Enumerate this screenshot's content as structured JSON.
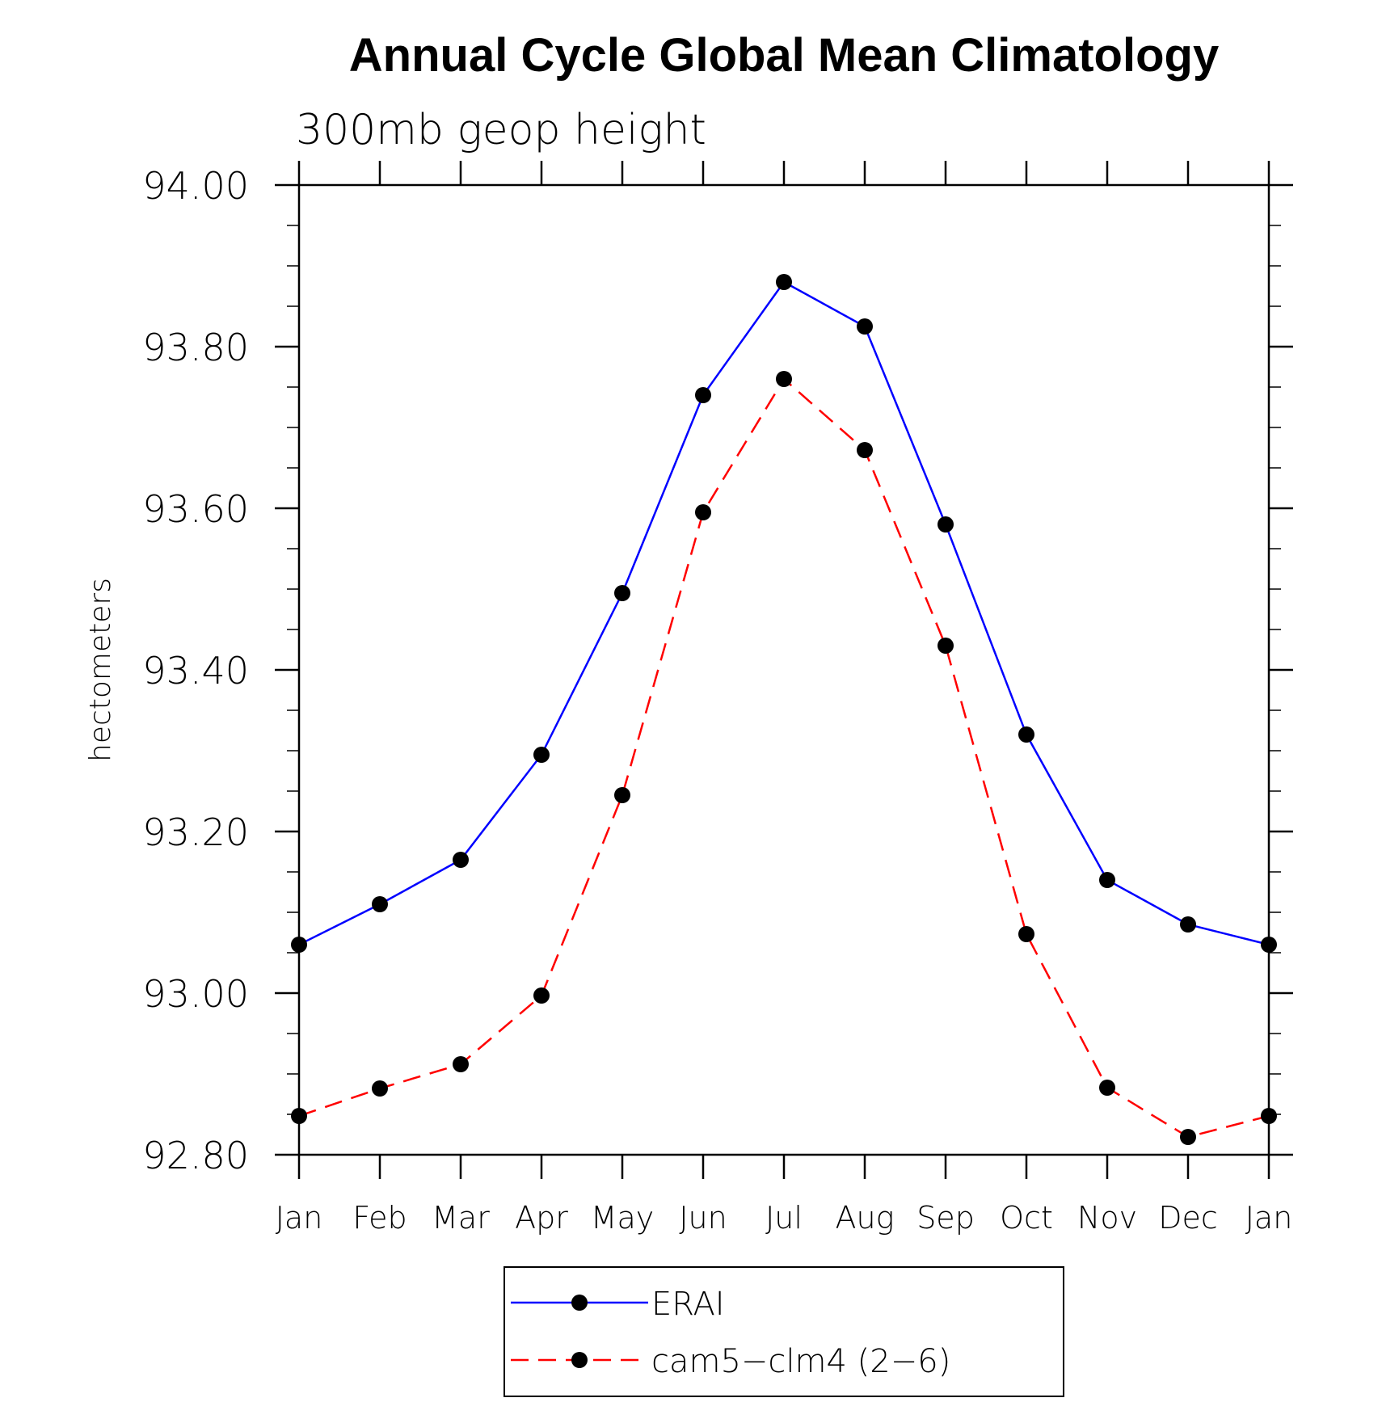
{
  "chart_data": {
    "type": "line",
    "title": "Annual Cycle Global Mean Climatology",
    "subtitle": "300mb geop height",
    "xlabel": "",
    "ylabel": "hectometers",
    "ylim": [
      92.8,
      94.0
    ],
    "y_ticks": [
      "92.80",
      "93.00",
      "93.20",
      "93.40",
      "93.60",
      "93.80",
      "94.00"
    ],
    "y_tick_values": [
      92.8,
      93.0,
      93.2,
      93.4,
      93.6,
      93.8,
      94.0
    ],
    "categories": [
      "Jan",
      "Feb",
      "Mar",
      "Apr",
      "May",
      "Jun",
      "Jul",
      "Aug",
      "Sep",
      "Oct",
      "Nov",
      "Dec",
      "Jan"
    ],
    "grid": false,
    "legend_position": "bottom",
    "series": [
      {
        "name": "ERAI",
        "color": "#0000ff",
        "line_style": "solid",
        "marker": "filled-circle",
        "values": [
          93.06,
          93.11,
          93.165,
          93.295,
          93.495,
          93.74,
          93.88,
          93.825,
          93.58,
          93.32,
          93.14,
          93.085,
          93.06
        ]
      },
      {
        "name": "cam5−clm4 (2−6)",
        "color": "#ff0000",
        "line_style": "dashed",
        "marker": "filled-circle",
        "values": [
          92.848,
          92.882,
          92.912,
          92.997,
          93.245,
          93.595,
          93.76,
          93.672,
          93.43,
          93.073,
          92.883,
          92.822,
          92.848
        ]
      }
    ]
  }
}
